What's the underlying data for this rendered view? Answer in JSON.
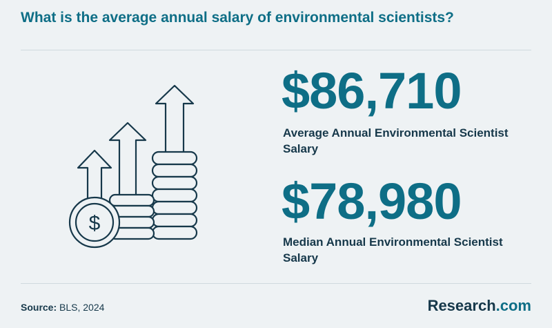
{
  "header": {
    "title": "What is the average annual salary of environmental scientists?"
  },
  "stats": [
    {
      "value": "$86,710",
      "label": "Average Annual Environmental Scientist Salary"
    },
    {
      "value": "$78,980",
      "label": "Median Annual Environmental Scientist Salary"
    }
  ],
  "footer": {
    "source_label": "Source:",
    "source_text": "BLS, 2024",
    "brand_name": "Research",
    "brand_tld": ".com"
  },
  "illustration": {
    "icon": "salary-growth-coins-icon",
    "coin_symbol": "$"
  },
  "colors": {
    "accent": "#0e6e86",
    "text": "#16384a",
    "background": "#eef2f4"
  }
}
